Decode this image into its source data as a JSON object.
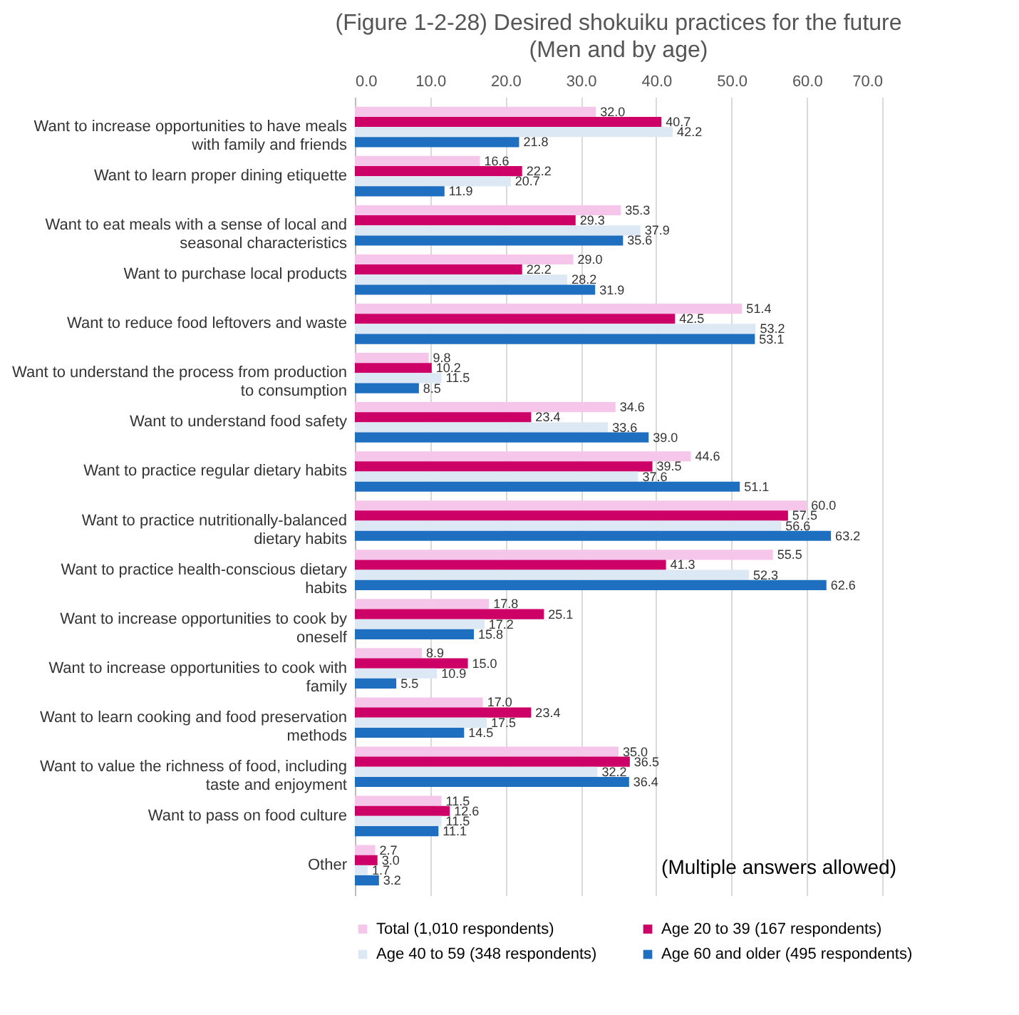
{
  "chart_data": {
    "type": "bar",
    "orientation": "horizontal",
    "title": "(Figure 1-2-28) Desired shokuiku practices for the future",
    "subtitle": "(Men and by age)",
    "categories": [
      "Want to increase opportunities to have meals with family and friends",
      "Want to learn proper dining etiquette",
      "Want to eat meals with a sense of local and seasonal characteristics",
      "Want to purchase local products",
      "Want to reduce food leftovers and waste",
      "Want to understand the process from production to consumption",
      "Want to understand food safety",
      "Want to practice regular dietary habits",
      "Want to practice nutritionally-balanced dietary habits",
      "Want to practice health-conscious dietary habits",
      "Want to increase opportunities to cook by oneself",
      "Want to increase opportunities to cook with family",
      "Want to learn cooking and food preservation methods",
      "Want to value the richness of food, including taste and enjoyment",
      "Want to pass on food culture",
      "Other"
    ],
    "series": [
      {
        "name": "Total (1,010 respondents)",
        "color": "#f6c6ea",
        "values": [
          32.0,
          16.6,
          35.3,
          29.0,
          51.4,
          9.8,
          34.6,
          44.6,
          60.0,
          55.5,
          17.8,
          8.9,
          17.0,
          35.0,
          11.5,
          2.7
        ],
        "value_labels": [
          "32.0",
          "16.6",
          "35.3",
          "29.0",
          "51.4",
          "9.8",
          "34.6",
          "44.6",
          "60.0",
          "55.5",
          "17.8",
          "8.9",
          "17.0",
          "35.0",
          "11.5",
          "2.7"
        ]
      },
      {
        "name": "Age 20 to 39 (167 respondents)",
        "color": "#cc0066",
        "values": [
          40.7,
          22.2,
          29.3,
          22.2,
          42.5,
          10.2,
          23.4,
          39.5,
          57.5,
          41.3,
          25.1,
          15.0,
          23.4,
          36.5,
          12.6,
          3.0
        ],
        "value_labels": [
          "40.7",
          "22.2",
          "29.3",
          "22.2",
          "42.5",
          "10.2",
          "23.4",
          "39.5",
          "57.5",
          "41.3",
          "25.1",
          "15.0",
          "23.4",
          "36.5",
          "12.6",
          "3.0"
        ]
      },
      {
        "name": "Age 40 to 59 (348 respondents)",
        "color": "#dce8f4",
        "values": [
          42.2,
          20.7,
          37.9,
          28.2,
          53.2,
          11.5,
          33.6,
          37.6,
          56.6,
          52.3,
          17.2,
          10.9,
          17.5,
          32.2,
          11.5,
          1.7
        ],
        "value_labels": [
          "42.2",
          "20.7",
          "37.9",
          "28.2",
          "53.2",
          "11.5",
          "33.6",
          "37.6",
          "56.6",
          "52.3",
          "17.2",
          "10.9",
          "17.5",
          "32.2",
          "11.5",
          "1.7"
        ]
      },
      {
        "name": "Age 60 and older (495 respondents)",
        "color": "#1f6fc0",
        "values": [
          21.8,
          11.9,
          35.6,
          31.9,
          53.1,
          8.5,
          39.0,
          51.1,
          63.2,
          62.6,
          15.8,
          5.5,
          14.5,
          36.4,
          11.1,
          3.2
        ],
        "value_labels": [
          "21.8",
          "11.9",
          "35.6",
          "31.9",
          "53.1",
          "8.5",
          "39.0",
          "51.1",
          "63.2",
          "62.6",
          "15.8",
          "5.5",
          "14.5",
          "36.4",
          "11.1",
          "3.2"
        ]
      }
    ],
    "xlim": [
      0,
      70
    ],
    "xticks": [
      {
        "value": 0,
        "label": "0.0"
      },
      {
        "value": 10,
        "label": "10.0"
      },
      {
        "value": 20,
        "label": "20.0"
      },
      {
        "value": 30,
        "label": "30.0"
      },
      {
        "value": 40,
        "label": "40.0"
      },
      {
        "value": 50,
        "label": "50.0"
      },
      {
        "value": 60,
        "label": "60.0"
      },
      {
        "value": 70,
        "label": "70.0"
      }
    ],
    "grid": "x",
    "legend": "bottom",
    "annotations": [
      "(Multiple answers allowed)"
    ]
  }
}
